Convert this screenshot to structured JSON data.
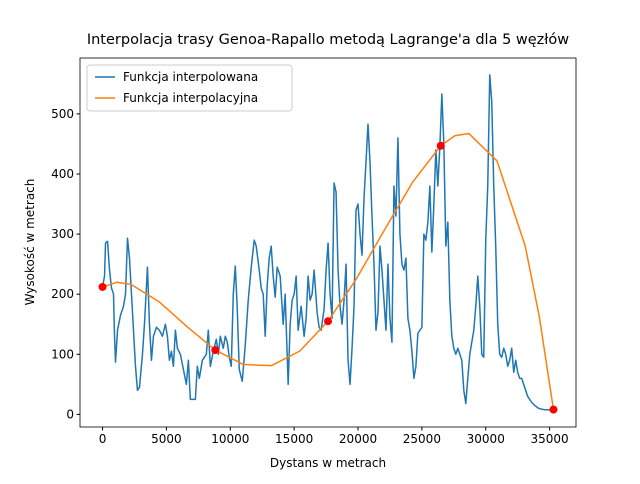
{
  "chart_data": {
    "type": "line",
    "title": "Interpolacja trasy Genoa-Rapallo metodą Lagrange'a dla 5 węzłów",
    "x_label": "Dystans w metrach",
    "y_label": "Wysokość w metrach",
    "xlim": [
      -1765,
      37065
    ],
    "ylim": [
      -21,
      593
    ],
    "xticks": [
      0,
      5000,
      10000,
      15000,
      20000,
      25000,
      30000,
      35000
    ],
    "yticks": [
      0,
      100,
      200,
      300,
      400,
      500
    ],
    "grid": false,
    "legend": "upper left",
    "series": [
      {
        "name": "Funkcja interpolowana",
        "color": "#1f77b4",
        "x": [
          0,
          156,
          234,
          391,
          547,
          703,
          859,
          938,
          1016,
          1172,
          1406,
          1641,
          1797,
          1953,
          2109,
          2344,
          2578,
          2734,
          2891,
          3125,
          3281,
          3516,
          3672,
          3828,
          3984,
          4219,
          4453,
          4688,
          4922,
          5078,
          5234,
          5391,
          5547,
          5703,
          5859,
          6094,
          6328,
          6563,
          6719,
          6875,
          7031,
          7266,
          7422,
          7578,
          7813,
          8125,
          8281,
          8438,
          8672,
          8906,
          9063,
          9219,
          9453,
          9609,
          9766,
          9922,
          10078,
          10234,
          10391,
          10547,
          10703,
          10938,
          11172,
          11406,
          11641,
          11875,
          12031,
          12266,
          12422,
          12578,
          12734,
          12891,
          13047,
          13203,
          13359,
          13516,
          13672,
          13906,
          14141,
          14297,
          14453,
          14531,
          14688,
          14844,
          15000,
          15156,
          15313,
          15547,
          15781,
          15938,
          16094,
          16250,
          16406,
          16563,
          16797,
          16953,
          17109,
          17344,
          17500,
          17656,
          17813,
          17969,
          18125,
          18281,
          18438,
          18594,
          18750,
          18906,
          19063,
          19219,
          19375,
          19531,
          19688,
          19844,
          20000,
          20156,
          20313,
          20469,
          20625,
          20781,
          20938,
          21094,
          21250,
          21406,
          21563,
          21719,
          21875,
          22031,
          22188,
          22344,
          22500,
          22656,
          22813,
          22969,
          23125,
          23281,
          23438,
          23594,
          23750,
          23906,
          24063,
          24219,
          24375,
          24531,
          24688,
          24844,
          25000,
          25156,
          25313,
          25469,
          25625,
          25781,
          25938,
          26094,
          26250,
          26406,
          26563,
          26719,
          26875,
          27031,
          27188,
          27344,
          27500,
          27656,
          27813,
          27969,
          28125,
          28281,
          28438,
          28594,
          28750,
          28906,
          29063,
          29219,
          29375,
          29531,
          29688,
          29844,
          30000,
          30156,
          30313,
          30469,
          30625,
          30781,
          30938,
          31094,
          31250,
          31406,
          31563,
          31719,
          31875,
          32031,
          32188,
          32344,
          32500,
          32656,
          32813,
          32969,
          33125,
          33281,
          33438,
          33594,
          33828,
          34141,
          34531,
          35300
        ],
        "values": [
          212,
          230,
          285,
          288,
          240,
          210,
          200,
          130,
          87,
          140,
          165,
          180,
          200,
          293,
          260,
          170,
          80,
          40,
          45,
          100,
          150,
          245,
          150,
          90,
          130,
          145,
          140,
          130,
          150,
          130,
          90,
          105,
          80,
          140,
          110,
          100,
          75,
          50,
          90,
          25,
          25,
          25,
          80,
          60,
          90,
          100,
          140,
          80,
          105,
          125,
          100,
          130,
          110,
          130,
          120,
          95,
          80,
          200,
          247,
          175,
          75,
          55,
          115,
          190,
          245,
          290,
          280,
          240,
          210,
          200,
          130,
          215,
          260,
          280,
          230,
          195,
          245,
          230,
          150,
          200,
          100,
          50,
          150,
          190,
          200,
          230,
          140,
          180,
          130,
          160,
          230,
          190,
          200,
          240,
          170,
          145,
          140,
          175,
          240,
          285,
          200,
          160,
          385,
          370,
          240,
          180,
          150,
          190,
          250,
          90,
          50,
          110,
          180,
          340,
          350,
          300,
          265,
          360,
          420,
          483,
          420,
          330,
          250,
          140,
          170,
          280,
          240,
          190,
          140,
          250,
          160,
          120,
          380,
          330,
          460,
          300,
          250,
          240,
          260,
          160,
          140,
          105,
          60,
          80,
          135,
          140,
          145,
          300,
          290,
          320,
          380,
          270,
          350,
          440,
          380,
          445,
          533,
          450,
          280,
          320,
          190,
          130,
          110,
          100,
          110,
          100,
          90,
          40,
          18,
          60,
          100,
          120,
          140,
          180,
          230,
          180,
          100,
          95,
          290,
          380,
          565,
          520,
          380,
          280,
          150,
          100,
          95,
          110,
          100,
          80,
          90,
          110,
          70,
          90,
          70,
          60,
          60,
          50,
          40,
          30,
          25,
          20,
          15,
          10,
          8,
          7
        ]
      },
      {
        "name": "Funkcja interpolacyjna",
        "color": "#ff7f0e",
        "x": [
          0,
          1103,
          2206,
          4413,
          6619,
          8825,
          11031,
          13238,
          15444,
          17650,
          19856,
          22063,
          24269,
          26475,
          27578,
          28681,
          30888,
          33094,
          34197,
          35300
        ],
        "values": [
          212,
          219.8,
          216.5,
          187.7,
          145.9,
          107,
          82.9,
          81.2,
          105.5,
          155,
          225,
          306.5,
          386.3,
          447,
          463.7,
          467.3,
          421.5,
          279.6,
          162.1,
          8
        ]
      }
    ],
    "points": {
      "color": "#ff0000",
      "x": [
        0,
        8825,
        17650,
        26475,
        35300
      ],
      "values": [
        212,
        107,
        155,
        447,
        8
      ]
    }
  }
}
